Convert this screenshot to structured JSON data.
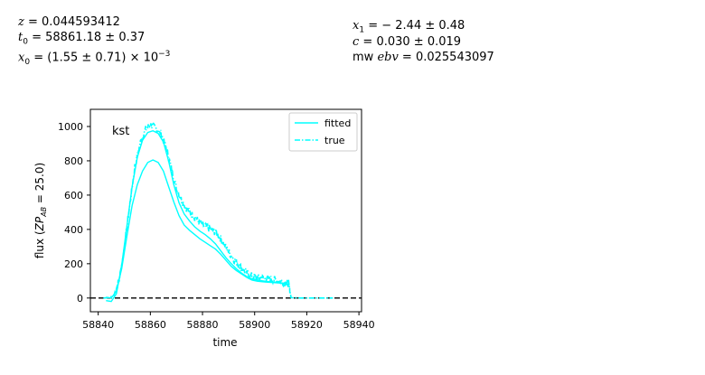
{
  "params": {
    "z": {
      "name": "z",
      "value": "0.044593412"
    },
    "t0": {
      "name": "t",
      "sub": "0",
      "value": "58861.18 ± 0.37"
    },
    "x0": {
      "name": "x",
      "sub": "0",
      "value": "(1.55 ± 0.71) × 10",
      "exp": "−3"
    },
    "x1": {
      "name": "x",
      "sub": "1",
      "value": "− 2.44 ± 0.48"
    },
    "c": {
      "name": "c",
      "value": "0.030 ± 0.019"
    },
    "mwebv": {
      "prefix": "mw",
      "name": "ebv",
      "value": "0.025543097"
    }
  },
  "chart_data": {
    "type": "line",
    "band_label": "kst",
    "xlabel": "time",
    "ylabel_prefix": "flux (",
    "ylabel_zp": "ZP",
    "ylabel_sub": "AB",
    "ylabel_suffix": " = 25.0)",
    "xlim": [
      58837,
      58941
    ],
    "ylim": [
      -80,
      1100
    ],
    "xticks": [
      58840,
      58860,
      58880,
      58900,
      58920,
      58940
    ],
    "yticks": [
      0,
      200,
      400,
      600,
      800,
      1000
    ],
    "zero_line": {
      "y": 0,
      "style": "dashed",
      "color": "#000000"
    },
    "legend": {
      "position": "top-right",
      "entries": [
        "fitted",
        "true"
      ]
    },
    "colors": {
      "series": "#00ffff",
      "axis": "#000000"
    },
    "series": [
      {
        "name": "fitted",
        "style": "solid",
        "x": [
          58843,
          58845,
          58847,
          58849,
          58851,
          58853,
          58855,
          58857,
          58859,
          58861,
          58863,
          58865,
          58867,
          58869,
          58871,
          58873,
          58875,
          58877,
          58879,
          58881,
          58883,
          58885,
          58887,
          58889,
          58891,
          58893,
          58895,
          58897,
          58899,
          58901,
          58903,
          58905,
          58907,
          58909,
          58911,
          58913
        ],
        "y": [
          5,
          0,
          40,
          170,
          360,
          540,
          660,
          740,
          790,
          805,
          790,
          740,
          650,
          560,
          480,
          425,
          395,
          370,
          345,
          325,
          305,
          285,
          255,
          220,
          185,
          160,
          140,
          120,
          105,
          98,
          95,
          92,
          90,
          88,
          85,
          80
        ]
      },
      {
        "name": "fitted",
        "style": "solid",
        "x": [
          58843,
          58845,
          58847,
          58849,
          58851,
          58853,
          58855,
          58857,
          58859,
          58861,
          58863,
          58865,
          58867,
          58869,
          58871,
          58873,
          58875,
          58877,
          58879,
          58881,
          58883,
          58885,
          58887,
          58889,
          58891,
          58893,
          58895,
          58897,
          58899,
          58901,
          58903,
          58905,
          58907,
          58909,
          58911,
          58913
        ],
        "y": [
          -15,
          -20,
          25,
          190,
          420,
          650,
          820,
          920,
          965,
          975,
          960,
          910,
          800,
          660,
          555,
          490,
          450,
          415,
          390,
          370,
          345,
          315,
          275,
          235,
          200,
          170,
          145,
          125,
          112,
          105,
          100,
          96,
          93,
          90,
          87,
          82
        ]
      },
      {
        "name": "true",
        "style": "dashdot",
        "x": [
          58842,
          58844,
          58846,
          58848,
          58850,
          58852,
          58854,
          58856,
          58858,
          58860,
          58862,
          58864,
          58866,
          58868,
          58870,
          58872,
          58874,
          58876,
          58878,
          58880,
          58882,
          58884,
          58886,
          58888,
          58890,
          58892,
          58894,
          58896,
          58898,
          58900,
          58902,
          58904,
          58906,
          58908,
          58910,
          58912,
          58913,
          58914,
          58916,
          58918,
          58920,
          58922,
          58924,
          58926,
          58928,
          58930
        ],
        "y": [
          0,
          2,
          15,
          100,
          290,
          530,
          760,
          900,
          980,
          1010,
          990,
          960,
          880,
          760,
          640,
          570,
          520,
          485,
          455,
          425,
          410,
          395,
          370,
          320,
          270,
          225,
          190,
          160,
          135,
          120,
          118,
          115,
          112,
          105,
          95,
          90,
          85,
          2,
          1,
          0,
          0,
          0,
          0,
          0,
          0,
          0
        ],
        "noise": 22
      }
    ]
  }
}
